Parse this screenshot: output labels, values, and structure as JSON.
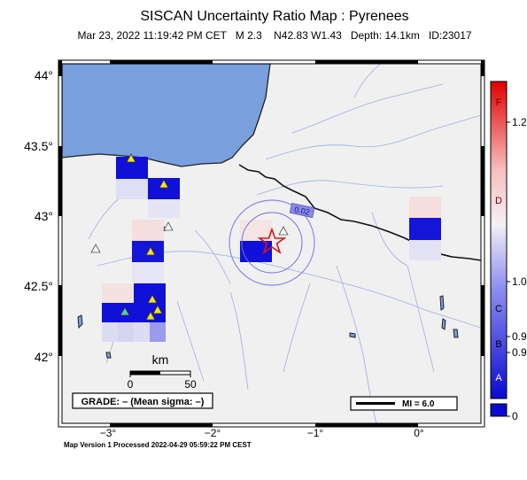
{
  "title": "SISCAN Uncertainty Ratio Map : Pyrenees",
  "subtitle": "Mar 23, 2022 11:19:42 PM CET   M 2.3    N42.83 W1.43   Depth: 14.1km   ID:23017",
  "axes": {
    "lat_ticks": [
      {
        "label": "44°",
        "value": 44.0
      },
      {
        "label": "43.5°",
        "value": 43.5
      },
      {
        "label": "43°",
        "value": 43.0
      },
      {
        "label": "42.5°",
        "value": 42.5
      },
      {
        "label": "42°",
        "value": 42.0
      }
    ],
    "lon_ticks": [
      {
        "label": "−3°",
        "value": -3.0
      },
      {
        "label": "−2°",
        "value": -2.0
      },
      {
        "label": "−1°",
        "value": -1.0
      },
      {
        "label": "0°",
        "value": 0.0
      }
    ],
    "lon_range": [
      -3.45,
      0.6
    ],
    "lat_range": [
      41.65,
      44.2
    ]
  },
  "scale_bar": {
    "unit": "km",
    "tick_0": "0",
    "tick_50": "50"
  },
  "grade_box": "GRADE: – (Mean sigma: –)",
  "mi_box": "MI = 6.0",
  "station_label": "0.02",
  "colorbar": {
    "letters": [
      "F",
      "D",
      "C",
      "B",
      "A"
    ],
    "values": [
      "1.2",
      "1.0",
      "0.9",
      "0.9",
      "0"
    ]
  },
  "footer": "Map Version 1 Processed 2022-04-29 05:59:22 PM CEST",
  "colors": {
    "sea": "#7a9fdd",
    "land": "#f0f0f0",
    "dark_blue": "#1010d8",
    "star": "#e01010"
  }
}
